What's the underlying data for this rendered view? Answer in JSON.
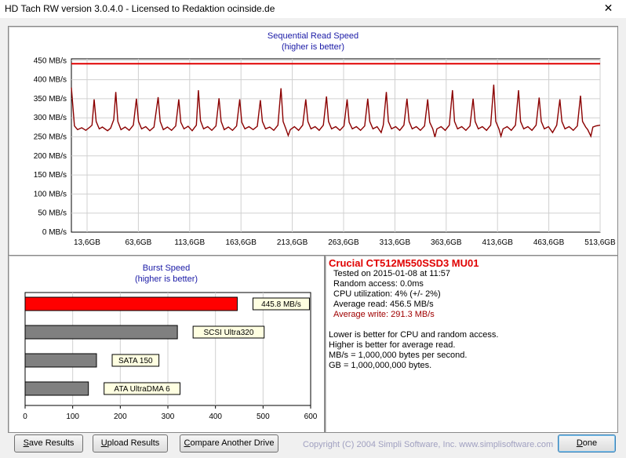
{
  "window": {
    "title": "HD Tach RW version 3.0.4.0  -  Licensed to Redaktion ocinside.de",
    "close_symbol": "✕"
  },
  "chart_data": [
    {
      "type": "line",
      "title": "Sequential Read Speed",
      "subtitle": "(higher is better)",
      "x_ticks": [
        "13,6GB",
        "63,6GB",
        "113,6GB",
        "163,6GB",
        "213,6GB",
        "263,6GB",
        "313,6GB",
        "363,6GB",
        "413,6GB",
        "463,6GB",
        "513,6GB"
      ],
      "y_ticks": [
        "0 MB/s",
        "50 MB/s",
        "100 MB/s",
        "150 MB/s",
        "200 MB/s",
        "250 MB/s",
        "300 MB/s",
        "350 MB/s",
        "400 MB/s",
        "450 MB/s"
      ],
      "ylim": [
        0,
        470
      ],
      "xlim": [
        0,
        512
      ],
      "grid": true,
      "series": [
        {
          "color": "#8b0000",
          "points": [
            [
              0,
              392
            ],
            [
              3,
              288
            ],
            [
              6,
              278
            ],
            [
              10,
              283
            ],
            [
              14,
              276
            ],
            [
              18,
              285
            ],
            [
              20,
              290
            ],
            [
              22,
              360
            ],
            [
              24,
              300
            ],
            [
              27,
              280
            ],
            [
              30,
              285
            ],
            [
              35,
              275
            ],
            [
              38,
              282
            ],
            [
              41,
              305
            ],
            [
              43,
              380
            ],
            [
              45,
              300
            ],
            [
              48,
              278
            ],
            [
              52,
              285
            ],
            [
              56,
              276
            ],
            [
              60,
              290
            ],
            [
              63,
              362
            ],
            [
              65,
              300
            ],
            [
              68,
              280
            ],
            [
              72,
              286
            ],
            [
              76,
              275
            ],
            [
              80,
              285
            ],
            [
              84,
              366
            ],
            [
              86,
              300
            ],
            [
              89,
              278
            ],
            [
              93,
              285
            ],
            [
              97,
              276
            ],
            [
              101,
              288
            ],
            [
              104,
              360
            ],
            [
              106,
              298
            ],
            [
              109,
              280
            ],
            [
              113,
              287
            ],
            [
              117,
              275
            ],
            [
              121,
              290
            ],
            [
              123,
              385
            ],
            [
              125,
              302
            ],
            [
              128,
              280
            ],
            [
              132,
              286
            ],
            [
              136,
              276
            ],
            [
              140,
              288
            ],
            [
              143,
              363
            ],
            [
              145,
              300
            ],
            [
              148,
              278
            ],
            [
              152,
              285
            ],
            [
              156,
              276
            ],
            [
              160,
              288
            ],
            [
              163,
              360
            ],
            [
              165,
              298
            ],
            [
              168,
              280
            ],
            [
              172,
              286
            ],
            [
              176,
              278
            ],
            [
              180,
              287
            ],
            [
              183,
              358
            ],
            [
              185,
              300
            ],
            [
              188,
              280
            ],
            [
              192,
              285
            ],
            [
              196,
              276
            ],
            [
              200,
              290
            ],
            [
              203,
              390
            ],
            [
              205,
              300
            ],
            [
              208,
              278
            ],
            [
              210,
              262
            ],
            [
              212,
              278
            ],
            [
              216,
              286
            ],
            [
              220,
              276
            ],
            [
              224,
              290
            ],
            [
              227,
              360
            ],
            [
              229,
              300
            ],
            [
              232,
              280
            ],
            [
              236,
              286
            ],
            [
              240,
              276
            ],
            [
              244,
              290
            ],
            [
              247,
              368
            ],
            [
              249,
              300
            ],
            [
              252,
              280
            ],
            [
              256,
              286
            ],
            [
              260,
              276
            ],
            [
              264,
              288
            ],
            [
              267,
              360
            ],
            [
              269,
              298
            ],
            [
              272,
              280
            ],
            [
              276,
              286
            ],
            [
              280,
              276
            ],
            [
              284,
              288
            ],
            [
              287,
              362
            ],
            [
              289,
              300
            ],
            [
              292,
              280
            ],
            [
              296,
              286
            ],
            [
              300,
              270
            ],
            [
              302,
              290
            ],
            [
              305,
              380
            ],
            [
              307,
              300
            ],
            [
              310,
              280
            ],
            [
              314,
              286
            ],
            [
              318,
              276
            ],
            [
              322,
              290
            ],
            [
              325,
              362
            ],
            [
              327,
              300
            ],
            [
              330,
              280
            ],
            [
              334,
              286
            ],
            [
              338,
              276
            ],
            [
              342,
              288
            ],
            [
              345,
              360
            ],
            [
              347,
              298
            ],
            [
              350,
              280
            ],
            [
              352,
              258
            ],
            [
              354,
              280
            ],
            [
              358,
              286
            ],
            [
              362,
              276
            ],
            [
              366,
              290
            ],
            [
              369,
              385
            ],
            [
              371,
              300
            ],
            [
              374,
              280
            ],
            [
              378,
              286
            ],
            [
              382,
              276
            ],
            [
              386,
              288
            ],
            [
              389,
              362
            ],
            [
              391,
              300
            ],
            [
              394,
              280
            ],
            [
              398,
              286
            ],
            [
              402,
              276
            ],
            [
              406,
              290
            ],
            [
              409,
              400
            ],
            [
              411,
              300
            ],
            [
              414,
              280
            ],
            [
              416,
              260
            ],
            [
              418,
              280
            ],
            [
              422,
              286
            ],
            [
              426,
              276
            ],
            [
              430,
              290
            ],
            [
              433,
              385
            ],
            [
              435,
              300
            ],
            [
              438,
              280
            ],
            [
              442,
              286
            ],
            [
              446,
              276
            ],
            [
              450,
              290
            ],
            [
              453,
              365
            ],
            [
              455,
              300
            ],
            [
              458,
              280
            ],
            [
              462,
              286
            ],
            [
              466,
              270
            ],
            [
              470,
              290
            ],
            [
              473,
              360
            ],
            [
              475,
              300
            ],
            [
              478,
              280
            ],
            [
              482,
              286
            ],
            [
              486,
              276
            ],
            [
              490,
              288
            ],
            [
              493,
              370
            ],
            [
              495,
              300
            ],
            [
              498,
              285
            ],
            [
              500,
              278
            ],
            [
              503,
              260
            ],
            [
              505,
              285
            ],
            [
              508,
              288
            ],
            [
              512,
              290
            ]
          ]
        },
        {
          "color": "#e00000",
          "points": [
            [
              0,
              456.5
            ],
            [
              512,
              456.5
            ]
          ]
        }
      ]
    },
    {
      "type": "bar",
      "title": "Burst Speed",
      "subtitle": "(higher is better)",
      "orientation": "horizontal",
      "xlim": [
        0,
        600
      ],
      "x_ticks": [
        "0",
        "100",
        "200",
        "300",
        "400",
        "500",
        "600"
      ],
      "categories": [
        "445.8 MB/s",
        "SCSI Ultra320",
        "SATA 150",
        "ATA UltraDMA 6"
      ],
      "values": [
        445.8,
        320,
        150,
        133
      ],
      "colors": [
        "#ff0000",
        "#808080",
        "#808080",
        "#808080"
      ]
    }
  ],
  "info": {
    "drive_name": "Crucial CT512M550SSD3 MU01",
    "tested_on": "Tested on 2015-01-08 at 11:57",
    "random_access": "Random access: 0.0ms",
    "cpu_utilization": "CPU utilization: 4% (+/- 2%)",
    "average_read": "Average read: 456.5 MB/s",
    "average_write": "Average write: 291.3 MB/s",
    "note1": "Lower is better for CPU and random access.",
    "note2": "Higher is better for average read.",
    "note3": "MB/s = 1,000,000 bytes per second.",
    "note4": "GB = 1,000,000,000 bytes.",
    "drive_color": "#e00000",
    "write_color": "#a00000"
  },
  "buttons": {
    "save_first": "S",
    "save_rest": "ave Results",
    "upload_first": "U",
    "upload_rest": "pload Results",
    "compare_first": "C",
    "compare_rest": "ompare Another Drive",
    "done_first": "D",
    "done_rest": "one"
  },
  "footer": {
    "copyright": "Copyright (C) 2004 Simpli Software, Inc. www.simplisoftware.com"
  }
}
